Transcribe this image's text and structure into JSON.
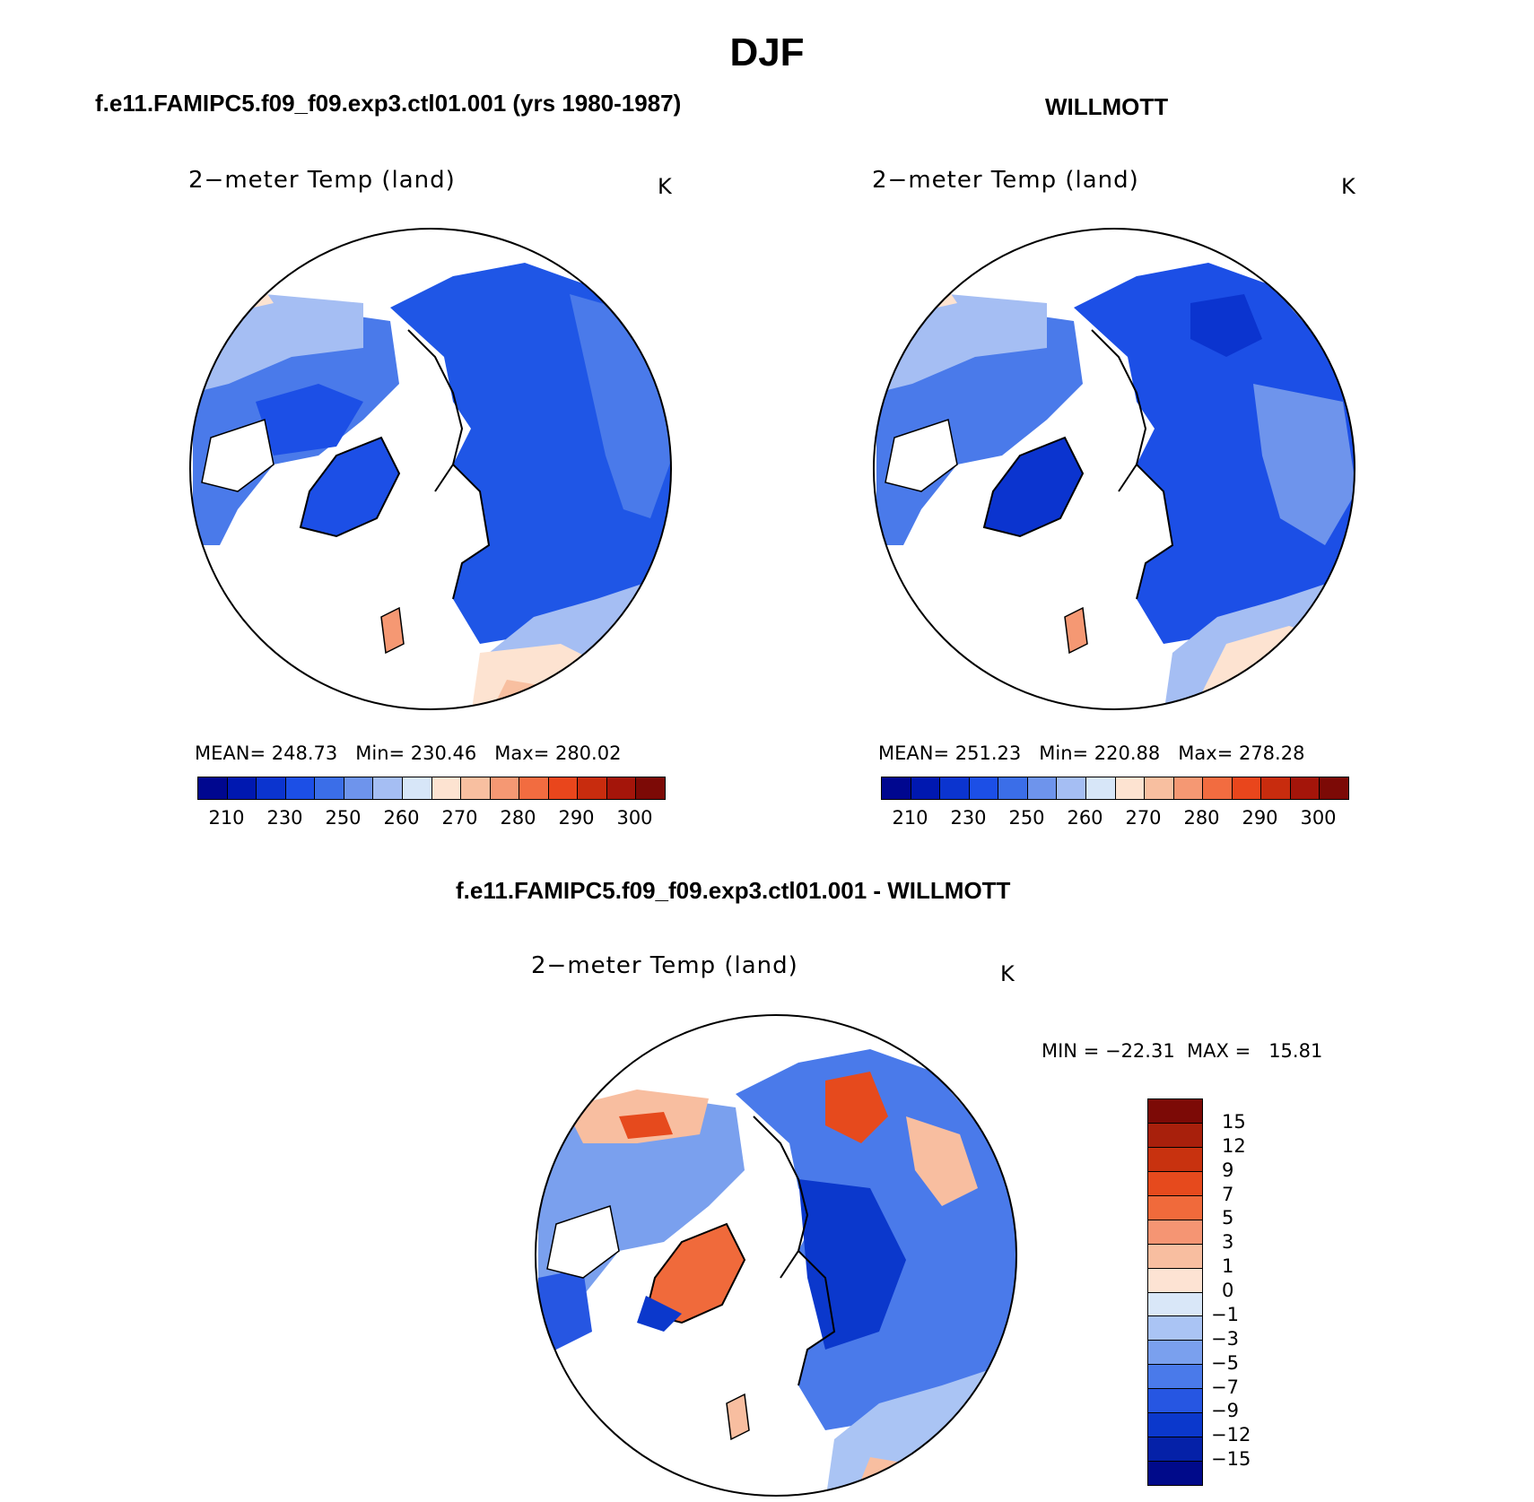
{
  "figure": {
    "title": "DJF",
    "units": "K",
    "variable_label": "2−meter Temp (land)"
  },
  "panels": [
    {
      "id": "model",
      "title": "f.e11.FAMIPC5.f09_f09.exp3.ctl01.001 (yrs 1980-1987)",
      "stats": {
        "mean": "248.73",
        "min": "230.46",
        "max": "280.02"
      },
      "stats_text": "MEAN= 248.73   Min= 230.46   Max= 280.02",
      "colorbar": {
        "colors": [
          "#00078f",
          "#0018b0",
          "#0b34cf",
          "#1c4fe6",
          "#3b6ee8",
          "#6e94ec",
          "#a5bef3",
          "#d7e6f8",
          "#fde3d1",
          "#f8bfa0",
          "#f59873",
          "#f26c40",
          "#e9461c",
          "#c82c0e",
          "#a4150a",
          "#7c0a06"
        ],
        "ticks": [
          "210",
          "230",
          "250",
          "260",
          "270",
          "280",
          "290",
          "300"
        ]
      }
    },
    {
      "id": "obs",
      "title": "WILLMOTT",
      "stats": {
        "mean": "251.23",
        "min": "220.88",
        "max": "278.28"
      },
      "stats_text": "MEAN= 251.23   Min= 220.88   Max= 278.28",
      "colorbar": {
        "colors": [
          "#00078f",
          "#0018b0",
          "#0b34cf",
          "#1c4fe6",
          "#3b6ee8",
          "#6e94ec",
          "#a5bef3",
          "#d7e6f8",
          "#fde3d1",
          "#f8bfa0",
          "#f59873",
          "#f26c40",
          "#e9461c",
          "#c82c0e",
          "#a4150a",
          "#7c0a06"
        ],
        "ticks": [
          "210",
          "230",
          "250",
          "260",
          "270",
          "280",
          "290",
          "300"
        ]
      }
    },
    {
      "id": "diff",
      "title": "f.e11.FAMIPC5.f09_f09.exp3.ctl01.001 - WILLMOTT",
      "stats": {
        "min": "−22.31",
        "max": "15.81"
      },
      "stats_text": "MIN = −22.31  MAX =   15.81",
      "colorbar": {
        "colors_top_to_bottom": [
          "#7c0a06",
          "#a8200c",
          "#c8320f",
          "#e64a1d",
          "#f06a3b",
          "#f59573",
          "#f8bea0",
          "#fde3d3",
          "#d9e7f8",
          "#aac4f4",
          "#7aa0ee",
          "#4a7aea",
          "#2656e2",
          "#0b38cc",
          "#0521a8",
          "#000a8a"
        ],
        "ticks": [
          "15",
          "12",
          "9",
          "7",
          "5",
          "3",
          "1",
          "0",
          "−1",
          "−3",
          "−5",
          "−7",
          "−9",
          "−12",
          "−15"
        ]
      }
    }
  ]
}
